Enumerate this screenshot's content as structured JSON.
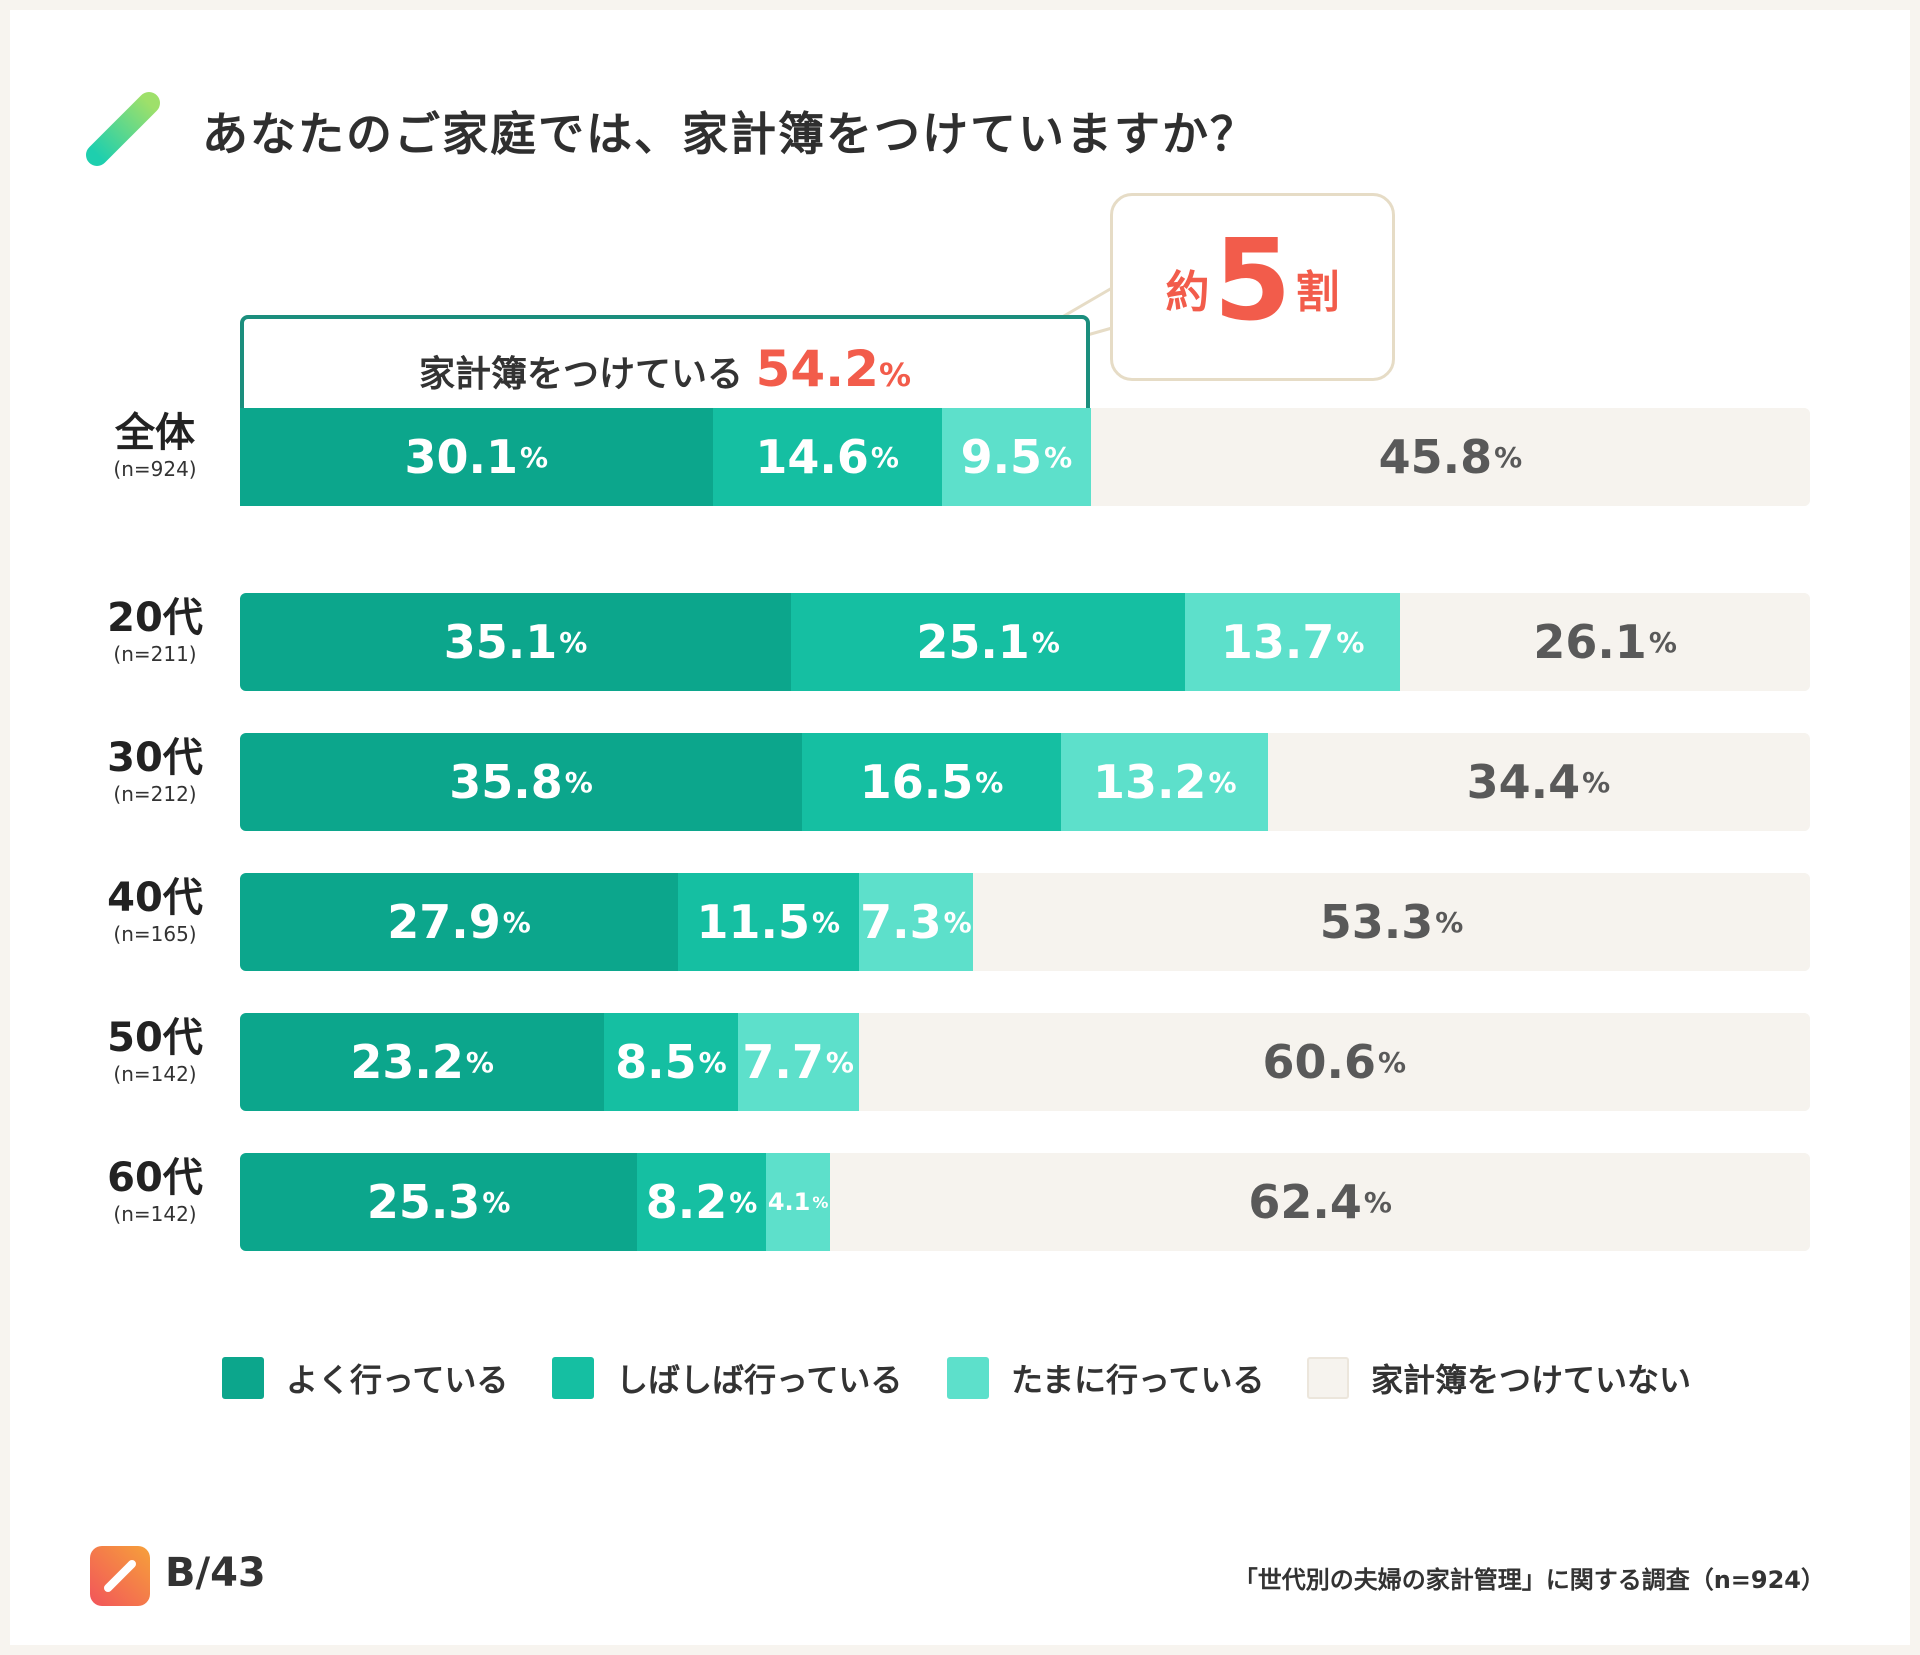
{
  "title": "あなたのご家庭では、家計簿をつけていますか？",
  "callout": {
    "prefix": "約",
    "number": "5",
    "suffix": "割"
  },
  "highlight": {
    "label": "家計簿をつけている",
    "value": "54.2",
    "pct": "%"
  },
  "colors": {
    "often": "#0ca68c",
    "sometimes": "#15bfa2",
    "occasionally": "#5de0cb",
    "none": "#f6f3ee",
    "accent": "#f25c4b",
    "frame": "#1b8e7d"
  },
  "brand": {
    "name": "B/43"
  },
  "source": "「世代別の夫婦の家計管理」に関する調査（n=924）",
  "chart_data": {
    "type": "bar",
    "orientation": "horizontal",
    "stacked": true,
    "title": "あなたのご家庭では、家計簿をつけていますか？",
    "unit": "%",
    "categories": [
      "全体",
      "20代",
      "30代",
      "40代",
      "50代",
      "60代"
    ],
    "sample_sizes": [
      "(n=924)",
      "(n=211)",
      "(n=212)",
      "(n=165)",
      "(n=142)",
      "(n=142)"
    ],
    "series": [
      {
        "name": "よく行っている",
        "values": [
          30.1,
          35.1,
          35.8,
          27.9,
          23.2,
          25.3
        ]
      },
      {
        "name": "しばしば行っている",
        "values": [
          14.6,
          25.1,
          16.5,
          11.5,
          8.5,
          8.2
        ]
      },
      {
        "name": "たまに行っている",
        "values": [
          9.5,
          13.7,
          13.2,
          7.3,
          7.7,
          4.1
        ]
      },
      {
        "name": "家計簿をつけていない",
        "values": [
          45.8,
          26.1,
          34.4,
          53.3,
          60.6,
          62.4
        ]
      }
    ],
    "xlim": [
      0,
      100
    ],
    "legend": "bottom"
  }
}
